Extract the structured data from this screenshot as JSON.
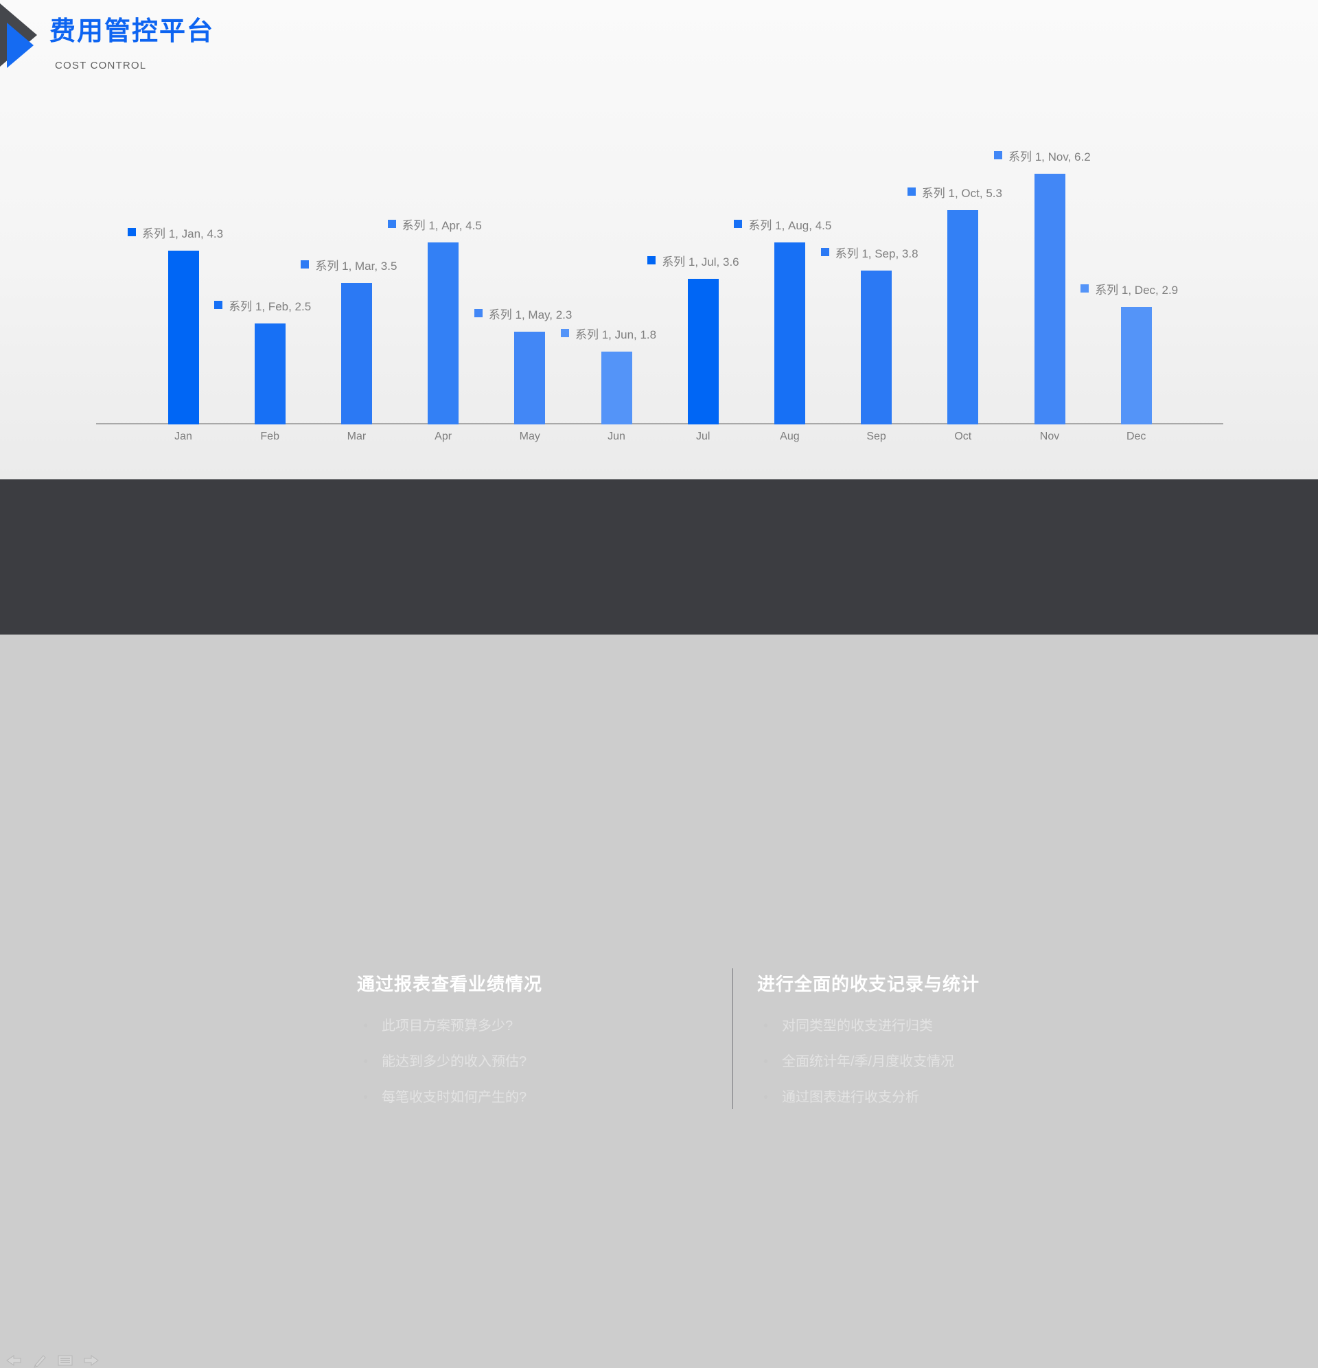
{
  "header": {
    "title": "费用管控平台",
    "subtitle": "COST CONTROL"
  },
  "chart_data": {
    "type": "bar",
    "title": "",
    "series_name": "系列 1",
    "categories": [
      "Jan",
      "Feb",
      "Mar",
      "Apr",
      "May",
      "Jun",
      "Jul",
      "Aug",
      "Sep",
      "Oct",
      "Nov",
      "Dec"
    ],
    "values": [
      4.3,
      2.5,
      3.5,
      4.5,
      2.3,
      1.8,
      3.6,
      4.5,
      3.8,
      5.3,
      6.2,
      2.9
    ],
    "data_labels": [
      "系列 1, Jan, 4.3",
      "系列 1, Feb, 2.5",
      "系列 1, Mar, 3.5",
      "系列 1, Apr, 4.5",
      "系列 1, May, 2.3",
      "系列 1, Jun, 1.8",
      "系列 1, Jul, 3.6",
      "系列 1, Aug, 4.5",
      "系列 1, Sep, 3.8",
      "系列 1, Oct, 5.3",
      "系列 1, Nov, 6.2",
      "系列 1, Dec, 2.9"
    ],
    "bar_colors": [
      "#0066f5",
      "#1770f5",
      "#2b79f4",
      "#3380f5",
      "#4287f6",
      "#5494f8",
      "#0066f5",
      "#1770f5",
      "#2b79f4",
      "#3380f5",
      "#4287f6",
      "#5494f8"
    ],
    "ylim": [
      0,
      6.8
    ],
    "xlabel": "",
    "ylabel": "",
    "grid": false,
    "legend": "none",
    "axis_line_color": "#a8a8a8",
    "tick_label_color": "#7d7d7d",
    "data_label_color": "#7f7f7f"
  },
  "panels": {
    "left": {
      "title": "通过报表查看业绩情况",
      "bullets": [
        "此项目方案预算多少?",
        "能达到多少的收入预估?",
        "每笔收支时如何产生的?"
      ]
    },
    "right": {
      "title": "进行全面的收支记录与统计",
      "bullets": [
        "对同类型的收支进行归类",
        "全面统计年/季/月度收支情况",
        "通过图表进行收支分析"
      ]
    }
  },
  "presenter_toolbar": {
    "icons": [
      "back-arrow-icon",
      "pen-icon",
      "slides-icon",
      "forward-arrow-icon"
    ]
  },
  "colors": {
    "accent_blue": "#0d64f1",
    "logo_dark": "#45474c",
    "logo_blue": "#156bf2",
    "panel_background": "#3c3d41",
    "app_background": "#cdcdcd"
  }
}
